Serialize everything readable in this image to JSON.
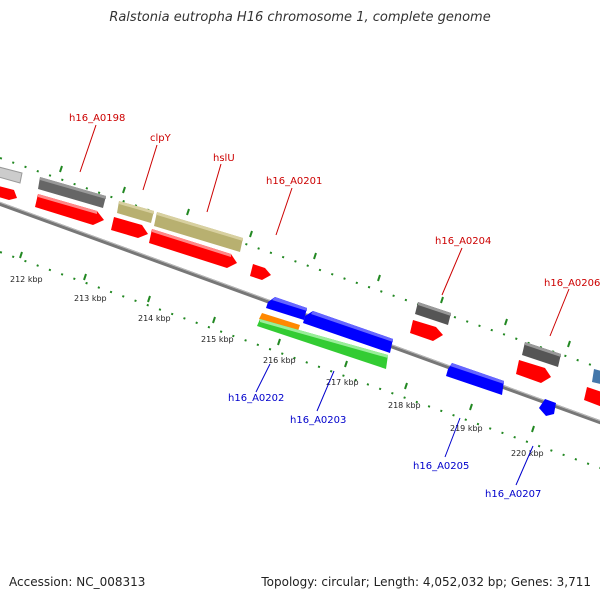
{
  "title": "Ralstonia eutropha H16 chromosome 1, complete genome",
  "footer": {
    "accession": "Accession: NC_008313",
    "topology": "Topology: circular; Length: 4,052,032 bp; Genes: 3,711"
  },
  "ticks": [
    "212 kbp",
    "213 kbp",
    "214 kbp",
    "215 kbp",
    "216 kbp",
    "217 kbp",
    "218 kbp",
    "219 kbp",
    "220 kbp"
  ],
  "labels": {
    "forward": [
      "h16_A0198",
      "clpY",
      "hslU",
      "h16_A0201",
      "h16_A0204",
      "h16_A0206"
    ],
    "reverse": [
      "h16_A0202",
      "h16_A0203",
      "h16_A0205",
      "h16_A0207"
    ]
  },
  "colors": {
    "forward_label": "#cc0000",
    "reverse_label": "#0000cc",
    "cds": "#ff0000",
    "gene_forward": "#666666",
    "gene_khaki": "#b8b070",
    "reverse_cds": "#0000ff",
    "reverse_rna": "#33cc33",
    "reverse_orange": "#ff8800",
    "tick": "#228822",
    "backbone": "#777777"
  }
}
